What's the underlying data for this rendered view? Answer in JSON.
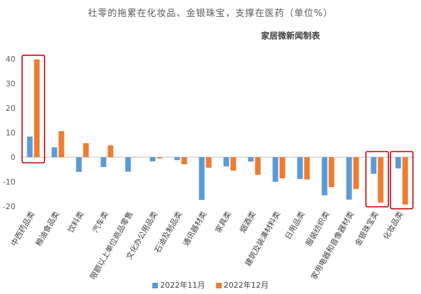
{
  "chart_data": {
    "type": "bar",
    "title": "社零的拖累在化妆品、金银珠宝，支撑在医药（单位%）",
    "source": "家居微新闻制表",
    "categories": [
      "中西药品类",
      "粮油食品类",
      "饮料类",
      "汽车类",
      "限额以上单位商品零售",
      "文化办公用品类",
      "石油及制品类",
      "通讯器材类",
      "家具类",
      "烟酒类",
      "建筑及装潢材料类",
      "日用品类",
      "服装纺织类",
      "家用电器和音像器材类",
      "金银珠宝类",
      "化妆品类"
    ],
    "series": [
      {
        "name": "2022年11月",
        "color": "#5b9bd5",
        "values": [
          8.4,
          4.0,
          -6.0,
          -4.0,
          -5.9,
          -1.7,
          -1.2,
          -17.4,
          -3.8,
          -1.8,
          -10.0,
          -8.9,
          -15.5,
          -17.3,
          -6.8,
          -4.6
        ]
      },
      {
        "name": "2022年12月",
        "color": "#ed7d31",
        "values": [
          39.8,
          10.6,
          5.7,
          4.8,
          0.0,
          -0.5,
          -2.9,
          -4.3,
          -5.5,
          -7.2,
          -8.6,
          -9.1,
          -12.2,
          -13.0,
          -18.5,
          -19.3
        ]
      }
    ],
    "ylim": [
      -20,
      40
    ],
    "yticks": [
      -20,
      -10,
      0,
      10,
      20,
      30,
      40
    ],
    "grid": false,
    "legend_position": "bottom",
    "highlighted": [
      "中西药品类",
      "金银珠宝类",
      "化妆品类"
    ],
    "highlight_color": "#c00000"
  }
}
